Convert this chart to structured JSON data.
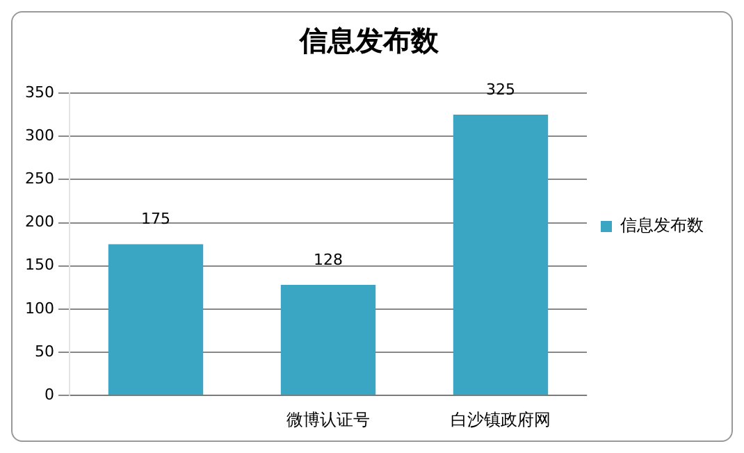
{
  "chart_data": {
    "type": "bar",
    "title": "信息发布数",
    "categories": [
      null,
      "微博认证号",
      "白沙镇政府网"
    ],
    "series": [
      {
        "name": "信息发布数",
        "color": "#3aa6c4",
        "values": [
          175,
          128,
          325
        ]
      }
    ],
    "ylim": [
      0,
      350
    ],
    "yticks": [
      0,
      50,
      100,
      150,
      200,
      250,
      300,
      350
    ],
    "grid": "y",
    "legend": "right",
    "data_labels": true
  }
}
